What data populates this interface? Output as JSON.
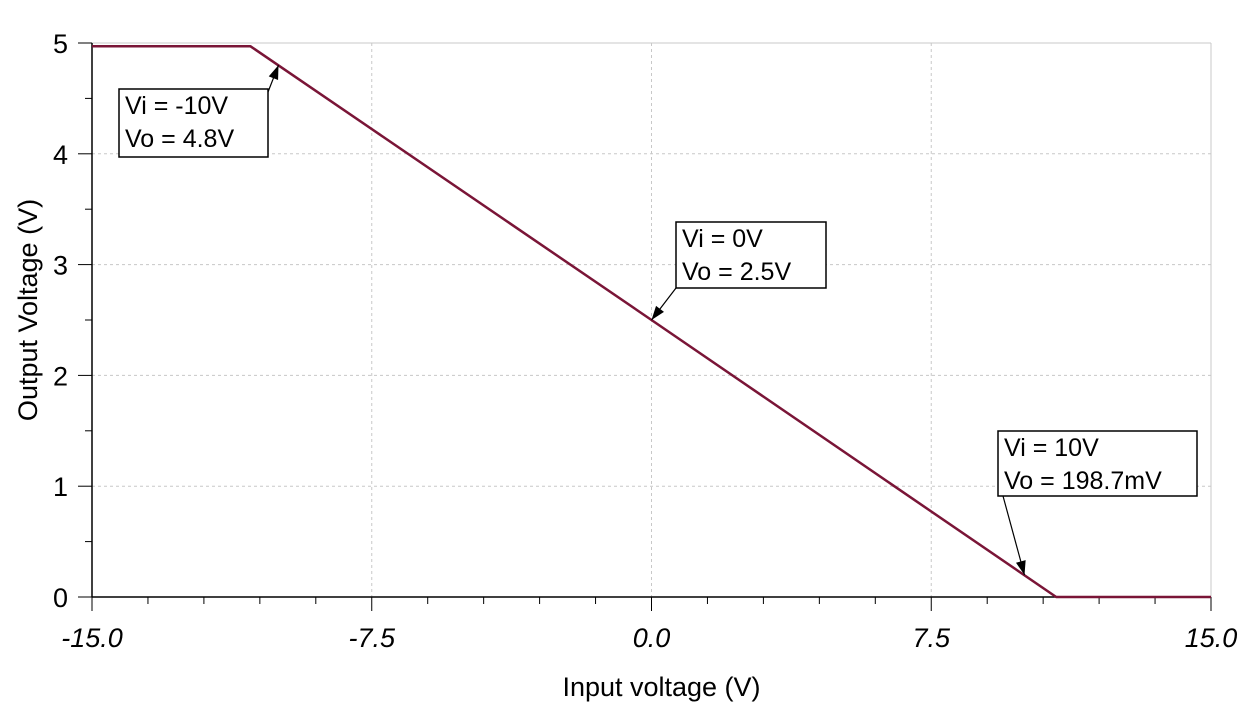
{
  "chart_data": {
    "type": "line",
    "title": "",
    "xlabel": "Input voltage (V)",
    "ylabel": "Output Voltage (V)",
    "xlim": [
      -15,
      15
    ],
    "ylim": [
      0,
      5
    ],
    "x_ticks": [
      "-15.0",
      "-7.5",
      "0.0",
      "7.5",
      "15.0"
    ],
    "y_ticks": [
      "0",
      "1",
      "2",
      "3",
      "4",
      "5"
    ],
    "grid": true,
    "series": [
      {
        "color": "#7a1537",
        "points": [
          {
            "x": -15.0,
            "y": 4.97
          },
          {
            "x": -10.75,
            "y": 4.97
          },
          {
            "x": 0.0,
            "y": 2.5
          },
          {
            "x": 10.85,
            "y": 0.0
          },
          {
            "x": 15.0,
            "y": 0.0
          }
        ]
      }
    ],
    "annotations": [
      {
        "lines": [
          "Vi = -10V",
          "Vo = 4.8V"
        ],
        "x": -10,
        "y": 4.8
      },
      {
        "lines": [
          "Vi = 0V",
          "Vo = 2.5V"
        ],
        "x": 0,
        "y": 2.5
      },
      {
        "lines": [
          "Vi = 10V",
          "Vo = 198.7mV"
        ],
        "x": 10,
        "y": 0.1987
      }
    ]
  }
}
